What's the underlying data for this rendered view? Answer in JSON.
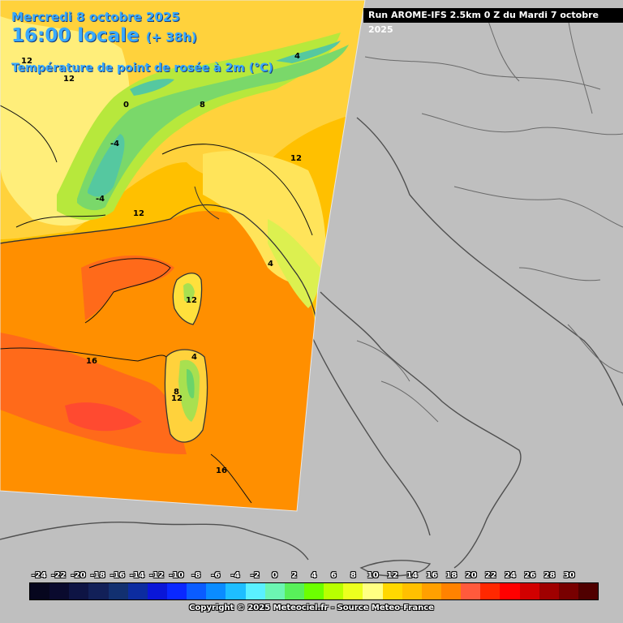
{
  "title": {
    "date": "Mercredi 8 octobre 2025",
    "time": "16:00 locale",
    "lead": "(+ 38h)",
    "parameter": "Température de point de rosée à 2m (°C)"
  },
  "run_banner": "Run AROME-IFS 2.5km 0 Z du Mardi 7 octobre 2025",
  "contour_labels": [
    "12",
    "12",
    "0",
    "8",
    "4",
    "-4",
    "12",
    "12",
    "12",
    "16",
    "8",
    "12",
    "16",
    "4",
    "-4",
    "4"
  ],
  "legend": {
    "ticks": [
      "-24",
      "-22",
      "-20",
      "-18",
      "-16",
      "-14",
      "-12",
      "-10",
      "-8",
      "-6",
      "-4",
      "-2",
      "0",
      "2",
      "4",
      "6",
      "8",
      "10",
      "12",
      "14",
      "16",
      "18",
      "20",
      "22",
      "24",
      "26",
      "28",
      "30"
    ],
    "colors": [
      "#06061e",
      "#0a0a2e",
      "#0e1444",
      "#122058",
      "#123070",
      "#0c2ca0",
      "#0a16d8",
      "#0a28ff",
      "#0a5cff",
      "#0a8cff",
      "#1ebeff",
      "#5af0ff",
      "#6cf5b2",
      "#58f05a",
      "#6cff00",
      "#b8ff00",
      "#ecff1e",
      "#ffff82",
      "#ffd800",
      "#ffc000",
      "#ffa000",
      "#ff8200",
      "#ff5a3c",
      "#ff2800",
      "#ff0000",
      "#d20000",
      "#a00000",
      "#780000",
      "#500000"
    ]
  },
  "copyright": "Copyright © 2025 Meteociel.fr - Source Meteo-France"
}
